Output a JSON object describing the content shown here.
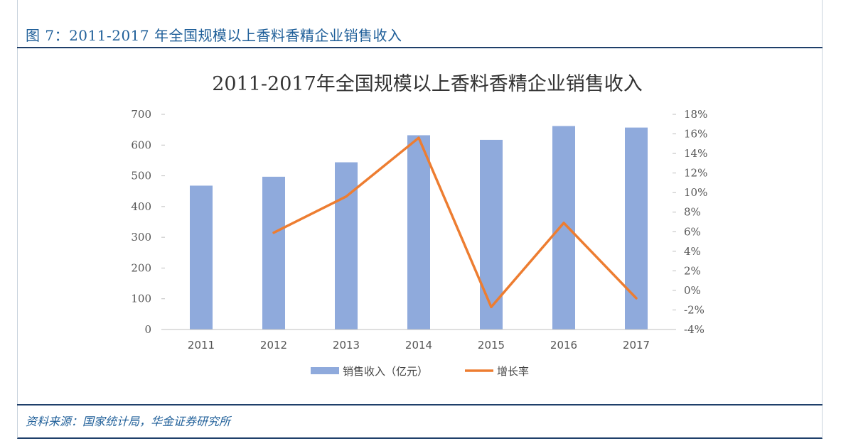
{
  "figure": {
    "title": "图 7：2011-2017 年全国规模以上香料香精企业销售收入",
    "source": "资料来源：国家统计局，华金证券研究所"
  },
  "chart_data": {
    "type": "bar",
    "title": "2011-2017年全国规模以上香料香精企业销售收入",
    "categories": [
      "2011",
      "2012",
      "2013",
      "2014",
      "2015",
      "2016",
      "2017"
    ],
    "series": [
      {
        "name": "销售收入（亿元）",
        "type": "bar",
        "axis": "left",
        "color": "#8faadc",
        "values": [
          468,
          497,
          544,
          632,
          617,
          662,
          657
        ]
      },
      {
        "name": "增长率",
        "type": "line",
        "axis": "right",
        "color": "#ed7d31",
        "values": [
          null,
          5.9,
          9.6,
          15.6,
          -1.7,
          6.9,
          -0.8
        ]
      }
    ],
    "y_left": {
      "min": 0,
      "max": 700,
      "ticks": [
        "0",
        "100",
        "200",
        "300",
        "400",
        "500",
        "600",
        "700"
      ]
    },
    "y_right": {
      "min": -4,
      "max": 18,
      "ticks": [
        "-4%",
        "-2%",
        "0%",
        "2%",
        "4%",
        "6%",
        "8%",
        "10%",
        "12%",
        "14%",
        "16%",
        "18%"
      ]
    },
    "legend_position": "bottom",
    "grid": false
  }
}
